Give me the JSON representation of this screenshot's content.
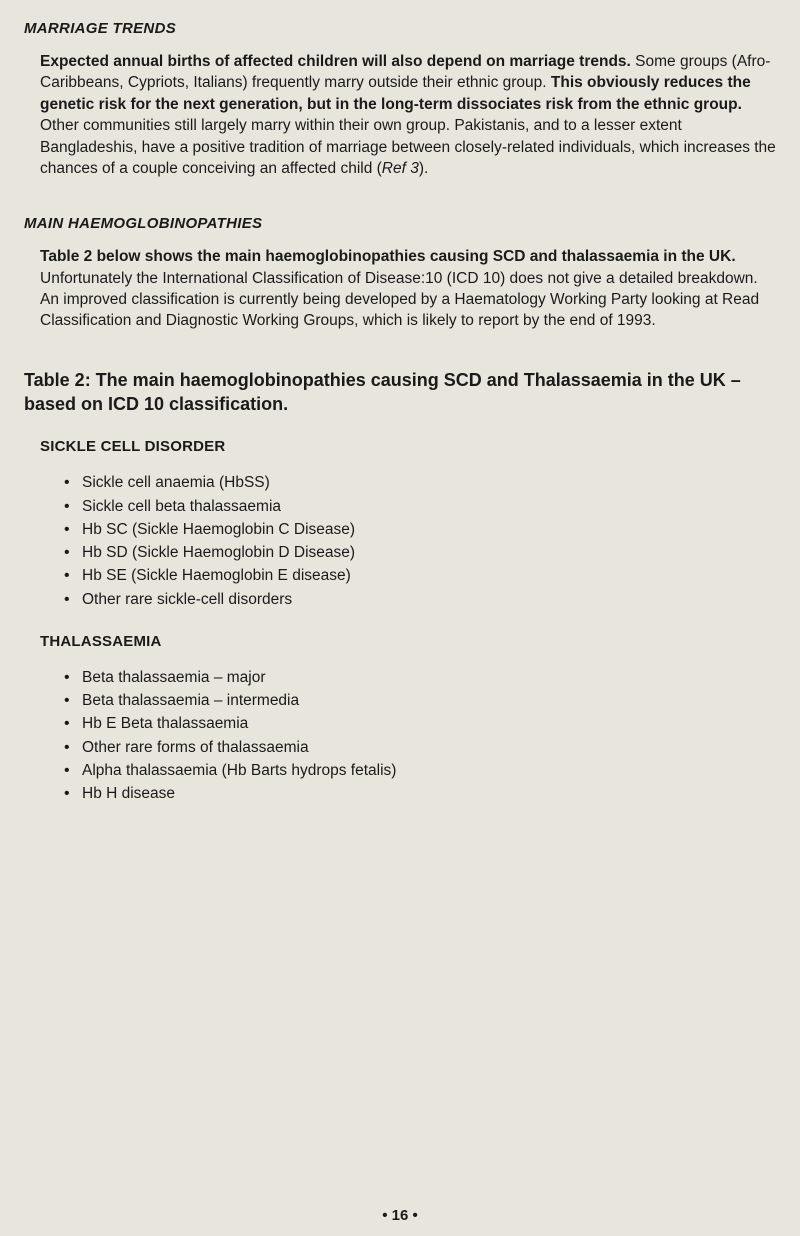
{
  "sec1": {
    "heading": "MARRIAGE TRENDS",
    "p1a": "Expected annual births of affected children will also depend on marriage trends.",
    "p1b": " Some groups (Afro-Caribbeans, Cypriots, Italians) frequently marry outside their ethnic group. ",
    "p1c": "This obviously reduces the genetic risk for the next generation, but in the long-term dissociates risk from the ethnic group.",
    "p1d": " Other communities still largely marry within their own group. Pakistanis, and to a lesser extent Bangladeshis, have a positive tradition of marriage between closely-related individuals, which increases the chances of a couple conceiving an affected child (",
    "p1e": "Ref 3",
    "p1f": ")."
  },
  "sec2": {
    "heading": "MAIN HAEMOGLOBINOPATHIES",
    "p1a": "Table 2 below shows the main haemoglobinopathies causing SCD and thalassaemia in the UK.",
    "p1b": " Unfortunately the International Classification of Disease:10 (ICD 10) does not give a detailed breakdown. An improved classification is currently being developed by a Haematology Working Party looking at Read Classification and Diagnostic Working Groups, which is likely to report by the end of 1993."
  },
  "table": {
    "title": "Table 2: The main haemoglobinopathies causing SCD and Thalassaemia in the UK – based on ICD 10 classification.",
    "sub1": {
      "heading": "SICKLE CELL DISORDER",
      "items": [
        "Sickle cell anaemia (HbSS)",
        "Sickle cell beta thalassaemia",
        "Hb SC (Sickle Haemoglobin C Disease)",
        "Hb SD (Sickle Haemoglobin D Disease)",
        "Hb SE (Sickle Haemoglobin E disease)",
        "Other rare sickle-cell disorders"
      ]
    },
    "sub2": {
      "heading": "THALASSAEMIA",
      "items": [
        "Beta thalassaemia – major",
        "Beta thalassaemia – intermedia",
        "Hb E Beta thalassaemia",
        "Other rare forms of thalassaemia",
        "Alpha thalassaemia (Hb Barts hydrops fetalis)",
        "Hb H disease"
      ]
    }
  },
  "pagenum": "• 16 •"
}
